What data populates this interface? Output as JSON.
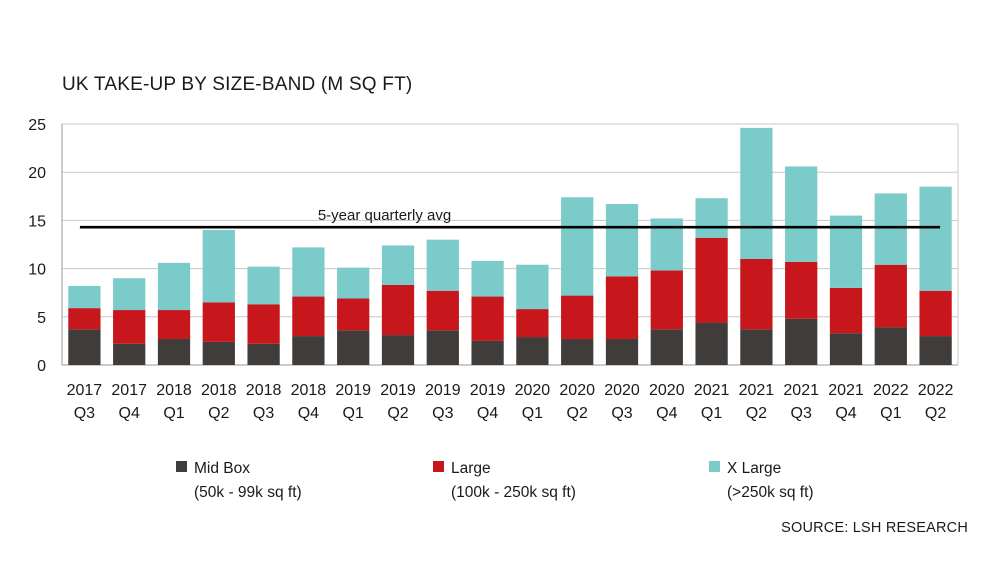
{
  "chart_data": {
    "type": "bar",
    "stacked": true,
    "title": "UK TAKE-UP BY SIZE-BAND (M SQ FT)",
    "categories": [
      [
        "2017",
        "Q3"
      ],
      [
        "2017",
        "Q4"
      ],
      [
        "2018",
        "Q1"
      ],
      [
        "2018",
        "Q2"
      ],
      [
        "2018",
        "Q3"
      ],
      [
        "2018",
        "Q4"
      ],
      [
        "2019",
        "Q1"
      ],
      [
        "2019",
        "Q2"
      ],
      [
        "2019",
        "Q3"
      ],
      [
        "2019",
        "Q4"
      ],
      [
        "2020",
        "Q1"
      ],
      [
        "2020",
        "Q2"
      ],
      [
        "2020",
        "Q3"
      ],
      [
        "2020",
        "Q4"
      ],
      [
        "2021",
        "Q1"
      ],
      [
        "2021",
        "Q2"
      ],
      [
        "2021",
        "Q3"
      ],
      [
        "2021",
        "Q4"
      ],
      [
        "2022",
        "Q1"
      ],
      [
        "2022",
        "Q2"
      ]
    ],
    "series": [
      {
        "name": "Mid Box",
        "sublabel": "(50k - 99k sq ft)",
        "color": "#403c3a",
        "values": [
          3.7,
          2.2,
          2.7,
          2.4,
          2.2,
          3.0,
          3.6,
          3.1,
          3.6,
          2.5,
          2.9,
          2.7,
          2.7,
          3.7,
          4.4,
          3.7,
          4.8,
          3.3,
          3.9,
          3.0
        ]
      },
      {
        "name": "Large",
        "sublabel": "(100k - 250k sq ft)",
        "color": "#c8161d",
        "values": [
          2.2,
          3.5,
          3.0,
          4.1,
          4.1,
          4.1,
          3.3,
          5.2,
          4.1,
          4.6,
          2.9,
          4.5,
          6.5,
          6.1,
          8.8,
          7.3,
          5.9,
          4.7,
          6.5,
          4.7
        ]
      },
      {
        "name": "X Large",
        "sublabel": "(>250k sq ft)",
        "color": "#7ccbcb",
        "values": [
          2.3,
          3.3,
          4.9,
          7.5,
          3.9,
          5.1,
          3.2,
          4.1,
          5.3,
          3.7,
          4.6,
          10.2,
          7.5,
          5.4,
          4.1,
          13.6,
          9.9,
          7.5,
          7.4,
          10.8
        ]
      }
    ],
    "reference_line": {
      "label": "5-year quarterly avg",
      "value": 14.3,
      "color": "#000000"
    },
    "ylim": [
      0,
      25
    ],
    "yticks": [
      0,
      5,
      10,
      15,
      20,
      25
    ],
    "grid": true,
    "legend_position": "bottom",
    "xlabel": "",
    "ylabel": ""
  },
  "source": "SOURCE: LSH RESEARCH"
}
